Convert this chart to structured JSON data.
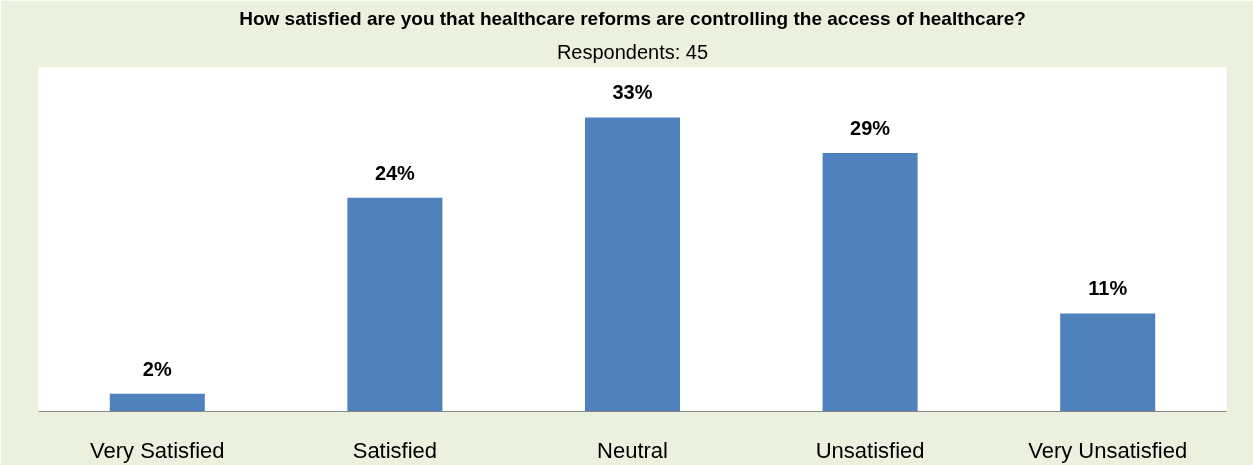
{
  "chart_data": {
    "type": "bar",
    "title": "How satisfied are you that healthcare reforms are controlling the access of healthcare?",
    "subtitle": "Respondents: 45",
    "categories": [
      "Very Satisfied",
      "Satisfied",
      "Neutral",
      "Unsatisfied",
      "Very Unsatisfied"
    ],
    "values": [
      2,
      24,
      33,
      29,
      11
    ],
    "value_labels": [
      "2%",
      "24%",
      "33%",
      "29%",
      "11%"
    ],
    "color": "#4f81bd"
  }
}
